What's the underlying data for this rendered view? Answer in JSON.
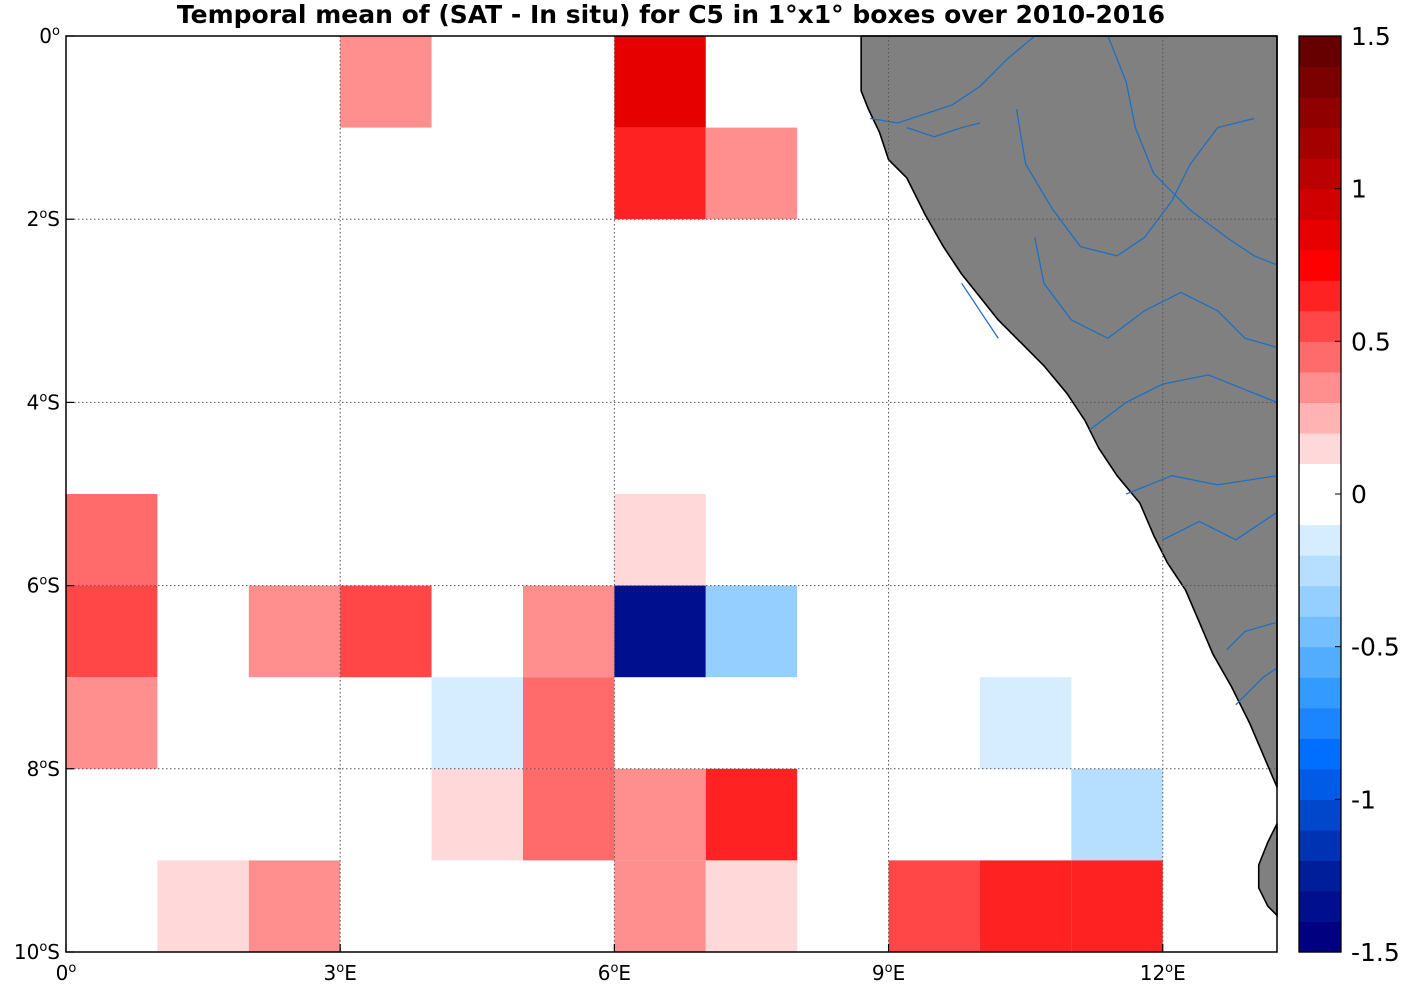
{
  "chart_data": {
    "type": "heatmap",
    "title": "Temporal mean of (SAT - In situ) for C5 in 1°x1° boxes over 2010-2016",
    "xlabel": "",
    "ylabel": "",
    "x_range": [
      0,
      13.25
    ],
    "y_range": [
      -10,
      0
    ],
    "x_ticks": [
      {
        "value": 0,
        "label": "0",
        "sup": "o",
        "suffix": ""
      },
      {
        "value": 3,
        "label": "3",
        "sup": "o",
        "suffix": "E"
      },
      {
        "value": 6,
        "label": "6",
        "sup": "o",
        "suffix": "E"
      },
      {
        "value": 9,
        "label": "9",
        "sup": "o",
        "suffix": "E"
      },
      {
        "value": 12,
        "label": "12",
        "sup": "o",
        "suffix": "E"
      }
    ],
    "y_ticks": [
      {
        "value": 0,
        "label": "0",
        "sup": "o",
        "suffix": ""
      },
      {
        "value": -2,
        "label": "2",
        "sup": "o",
        "suffix": "S"
      },
      {
        "value": -4,
        "label": "4",
        "sup": "o",
        "suffix": "S"
      },
      {
        "value": -6,
        "label": "6",
        "sup": "o",
        "suffix": "S"
      },
      {
        "value": -8,
        "label": "8",
        "sup": "o",
        "suffix": "S"
      },
      {
        "value": -10,
        "label": "10",
        "sup": "o",
        "suffix": "S"
      }
    ],
    "grid": true,
    "colorbar": {
      "range": [
        -1.5,
        1.5
      ],
      "step": 0.1,
      "ticks": [
        {
          "value": 1.5,
          "label": "1.5"
        },
        {
          "value": 1,
          "label": "1"
        },
        {
          "value": 0.5,
          "label": "0.5"
        },
        {
          "value": 0,
          "label": "0"
        },
        {
          "value": -0.5,
          "label": "-0.5"
        },
        {
          "value": -1,
          "label": "-1"
        },
        {
          "value": -1.5,
          "label": "-1.5"
        }
      ]
    },
    "cells": [
      {
        "lon": 3,
        "lat": 0,
        "value": 0.3
      },
      {
        "lon": 6,
        "lat": 0,
        "value": 0.8
      },
      {
        "lon": 6,
        "lat": -1,
        "value": 0.6
      },
      {
        "lon": 7,
        "lat": -1,
        "value": 0.3
      },
      {
        "lon": 0,
        "lat": -5,
        "value": 0.4
      },
      {
        "lon": 3,
        "lat": -5,
        "value": -0.1
      },
      {
        "lon": 6,
        "lat": -5,
        "value": 0.15
      },
      {
        "lon": 0,
        "lat": -6,
        "value": 0.5
      },
      {
        "lon": 2,
        "lat": -6,
        "value": 0.3
      },
      {
        "lon": 3,
        "lat": -6,
        "value": 0.5
      },
      {
        "lon": 5,
        "lat": -6,
        "value": 0.3
      },
      {
        "lon": 6,
        "lat": -6,
        "value": -1.4
      },
      {
        "lon": 7,
        "lat": -6,
        "value": -0.35
      },
      {
        "lon": 0,
        "lat": -7,
        "value": 0.3
      },
      {
        "lon": 4,
        "lat": -7,
        "value": -0.2
      },
      {
        "lon": 5,
        "lat": -7,
        "value": 0.4
      },
      {
        "lon": 10,
        "lat": -7,
        "value": -0.2
      },
      {
        "lon": 4,
        "lat": -8,
        "value": 0.15
      },
      {
        "lon": 5,
        "lat": -8,
        "value": 0.4
      },
      {
        "lon": 6,
        "lat": -8,
        "value": 0.3
      },
      {
        "lon": 7,
        "lat": -8,
        "value": 0.6
      },
      {
        "lon": 11,
        "lat": -8,
        "value": -0.25
      },
      {
        "lon": 1,
        "lat": -9,
        "value": 0.15
      },
      {
        "lon": 2,
        "lat": -9,
        "value": 0.3
      },
      {
        "lon": 6,
        "lat": -9,
        "value": 0.3
      },
      {
        "lon": 7,
        "lat": -9,
        "value": 0.15
      },
      {
        "lon": 9,
        "lat": -9,
        "value": 0.5
      },
      {
        "lon": 10,
        "lat": -9,
        "value": 0.6
      },
      {
        "lon": 11,
        "lat": -9,
        "value": 0.6
      }
    ],
    "land_outline": [
      [
        8.7,
        -0.6
      ],
      [
        8.78,
        -0.8
      ],
      [
        8.9,
        -1.05
      ],
      [
        9.0,
        -1.35
      ],
      [
        9.2,
        -1.55
      ],
      [
        9.3,
        -1.75
      ],
      [
        9.4,
        -1.95
      ],
      [
        9.6,
        -2.3
      ],
      [
        9.8,
        -2.6
      ],
      [
        10.0,
        -2.85
      ],
      [
        10.2,
        -3.1
      ],
      [
        10.45,
        -3.35
      ],
      [
        10.7,
        -3.6
      ],
      [
        10.95,
        -3.9
      ],
      [
        11.15,
        -4.2
      ],
      [
        11.3,
        -4.5
      ],
      [
        11.5,
        -4.8
      ],
      [
        11.75,
        -5.1
      ],
      [
        11.9,
        -5.45
      ],
      [
        12.05,
        -5.75
      ],
      [
        12.25,
        -6.05
      ],
      [
        12.4,
        -6.4
      ],
      [
        12.55,
        -6.75
      ],
      [
        12.75,
        -7.1
      ],
      [
        12.95,
        -7.5
      ],
      [
        13.1,
        -7.85
      ],
      [
        13.25,
        -8.2
      ],
      [
        13.25,
        0.0
      ],
      [
        8.7,
        0.0
      ]
    ],
    "land_patch": [
      [
        13.25,
        -8.6
      ],
      [
        13.15,
        -8.8
      ],
      [
        13.05,
        -9.05
      ],
      [
        13.05,
        -9.3
      ],
      [
        13.15,
        -9.5
      ],
      [
        13.25,
        -9.6
      ]
    ],
    "rivers": [
      [
        [
          8.8,
          -0.9
        ],
        [
          9.1,
          -0.95
        ],
        [
          9.4,
          -0.85
        ],
        [
          9.7,
          -0.75
        ],
        [
          10.0,
          -0.55
        ],
        [
          10.3,
          -0.25
        ],
        [
          10.6,
          0.0
        ]
      ],
      [
        [
          9.2,
          -1.0
        ],
        [
          9.5,
          -1.1
        ],
        [
          9.8,
          -1.0
        ],
        [
          10.0,
          -0.95
        ]
      ],
      [
        [
          10.4,
          -0.8
        ],
        [
          10.5,
          -1.4
        ],
        [
          10.8,
          -1.9
        ],
        [
          11.1,
          -2.3
        ],
        [
          11.5,
          -2.4
        ],
        [
          11.8,
          -2.2
        ],
        [
          12.1,
          -1.8
        ],
        [
          12.3,
          -1.4
        ],
        [
          12.6,
          -1.0
        ],
        [
          13.0,
          -0.9
        ]
      ],
      [
        [
          11.4,
          0.0
        ],
        [
          11.6,
          -0.5
        ],
        [
          11.7,
          -1.0
        ],
        [
          11.9,
          -1.5
        ],
        [
          12.3,
          -1.9
        ],
        [
          12.7,
          -2.2
        ],
        [
          13.0,
          -2.4
        ],
        [
          13.25,
          -2.5
        ]
      ],
      [
        [
          10.6,
          -2.2
        ],
        [
          10.7,
          -2.7
        ],
        [
          11.0,
          -3.1
        ],
        [
          11.4,
          -3.3
        ],
        [
          11.8,
          -3.0
        ],
        [
          12.2,
          -2.8
        ],
        [
          12.6,
          -3.0
        ],
        [
          12.9,
          -3.3
        ],
        [
          13.25,
          -3.4
        ]
      ],
      [
        [
          11.2,
          -4.3
        ],
        [
          11.6,
          -4.0
        ],
        [
          12.0,
          -3.8
        ],
        [
          12.5,
          -3.7
        ],
        [
          13.0,
          -3.9
        ],
        [
          13.25,
          -4.0
        ]
      ],
      [
        [
          11.6,
          -5.0
        ],
        [
          12.1,
          -4.8
        ],
        [
          12.6,
          -4.9
        ],
        [
          13.25,
          -4.8
        ]
      ],
      [
        [
          12.0,
          -5.5
        ],
        [
          12.4,
          -5.3
        ],
        [
          12.8,
          -5.5
        ],
        [
          13.25,
          -5.2
        ]
      ],
      [
        [
          12.8,
          -7.3
        ],
        [
          13.1,
          -7.0
        ],
        [
          13.25,
          -6.9
        ]
      ],
      [
        [
          9.8,
          -2.7
        ],
        [
          10.0,
          -3.0
        ],
        [
          10.2,
          -3.3
        ]
      ],
      [
        [
          12.7,
          -6.7
        ],
        [
          12.9,
          -6.5
        ],
        [
          13.25,
          -6.4
        ]
      ]
    ]
  }
}
